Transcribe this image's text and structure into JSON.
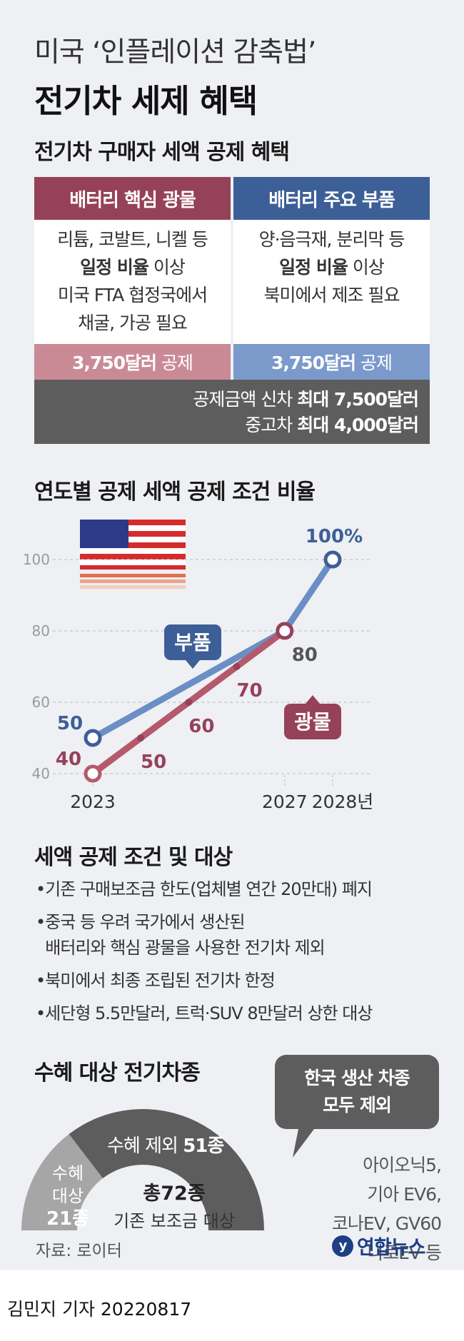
{
  "header": {
    "title_line1": "미국 ‘인플레이션 감축법’",
    "title_line2": "전기차 세제 혜택"
  },
  "credit_section": {
    "title": "전기차 구매자 세액 공제 혜택",
    "minerals": {
      "header": "배터리 핵심 광물",
      "lines": [
        "리튬, 코발트, 니켈 등",
        "일정 비율",
        " 이상",
        "미국 FTA 협정국에서",
        "채굴, 가공 필요"
      ],
      "amount_bold": "3,750달러",
      "amount_rest": " 공제"
    },
    "parts": {
      "header": "배터리 주요 부품",
      "lines": [
        "양·음극재, 분리막 등",
        "일정 비율",
        " 이상",
        "북미에서 제조 필요"
      ],
      "amount_bold": "3,750달러",
      "amount_rest": " 공제"
    },
    "total": {
      "new_prefix": "공제금액 신차 ",
      "new_bold": "최대 7,500달러",
      "used_prefix": "중고차 ",
      "used_bold": "최대 4,000달러"
    }
  },
  "chart_data": {
    "type": "line",
    "title": "연도별 공제 세액 공제 조건 비율",
    "x_ticks": [
      "2023",
      "2027",
      "2028년"
    ],
    "y_ticks": [
      40,
      60,
      80,
      100
    ],
    "ylim": [
      40,
      100
    ],
    "xlim": [
      2023,
      2028
    ],
    "grid": true,
    "series": [
      {
        "name": "부품",
        "color": "#6b8ec4",
        "points": [
          {
            "x": 2023,
            "y": 50,
            "label": "50"
          },
          {
            "x": 2027,
            "y": 80,
            "label": "80"
          },
          {
            "x": 2028,
            "y": 100,
            "label": "100%"
          }
        ]
      },
      {
        "name": "광물",
        "color": "#b5596d",
        "points": [
          {
            "x": 2023,
            "y": 40,
            "label": "40"
          },
          {
            "x": 2024,
            "y": 50,
            "label": "50"
          },
          {
            "x": 2025,
            "y": 60,
            "label": "60"
          },
          {
            "x": 2026,
            "y": 70,
            "label": "70"
          },
          {
            "x": 2027,
            "y": 80,
            "label": ""
          }
        ]
      }
    ]
  },
  "conditions": {
    "title": "세액 공제 조건 및 대상",
    "items": [
      "•기존 구매보조금 한도(업체별 연간 20만대) 폐지",
      "•중국 등 우려 국가에서 생산된",
      "  배터리와 핵심 광물을 사용한 전기차 제외",
      "•북미에서 최종 조립된 전기차 한정",
      "•세단형 5.5만달러, 트럭·SUV 8만달러 상한 대상"
    ]
  },
  "eligible": {
    "title": "수혜 대상 전기차종",
    "excluded_label": "수혜 제외 ",
    "excluded_value": "51종",
    "included_label_1": "수혜",
    "included_label_2": "대상",
    "included_value": "21종",
    "total_bold": "총72종",
    "total_sub": "기존 보조금 대상",
    "excluded_count": 51,
    "included_count": 21,
    "callout_line1": "한국 생산 차종",
    "callout_line2": "모두 제외",
    "cars": [
      "아이오닉5,",
      "기아 EV6,",
      "코나EV, GV60",
      "니로EV 등"
    ]
  },
  "footer": {
    "source": "자료: 로이터",
    "logo_text": "연합뉴스",
    "byline": "김민지 기자  20220817"
  },
  "colors": {
    "minerals": "#96415a",
    "minerals_light": "#c98a96",
    "parts": "#3d5f98",
    "parts_light": "#7b9acb",
    "gray": "#5d5d5d"
  }
}
